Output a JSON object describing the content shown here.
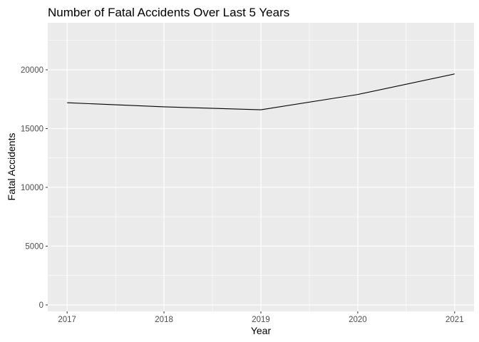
{
  "chart_data": {
    "type": "line",
    "title": "Number of Fatal Accidents Over Last 5 Years",
    "xlabel": "Year",
    "ylabel": "Fatal Accidents",
    "x": [
      2017,
      2018,
      2019,
      2020,
      2021
    ],
    "series": [
      {
        "values": [
          17200,
          16850,
          16600,
          17900,
          19650
        ],
        "color": "#000000"
      }
    ],
    "x_ticks": [
      "2017",
      "2018",
      "2019",
      "2020",
      "2021"
    ],
    "y_ticks": [
      "0",
      "5000",
      "10000",
      "15000",
      "20000"
    ],
    "xlim": [
      2016.8,
      2021.2
    ],
    "ylim": [
      -550,
      24000
    ],
    "grid": true,
    "panel_background": "#ebebeb",
    "grid_color": "#ffffff"
  }
}
